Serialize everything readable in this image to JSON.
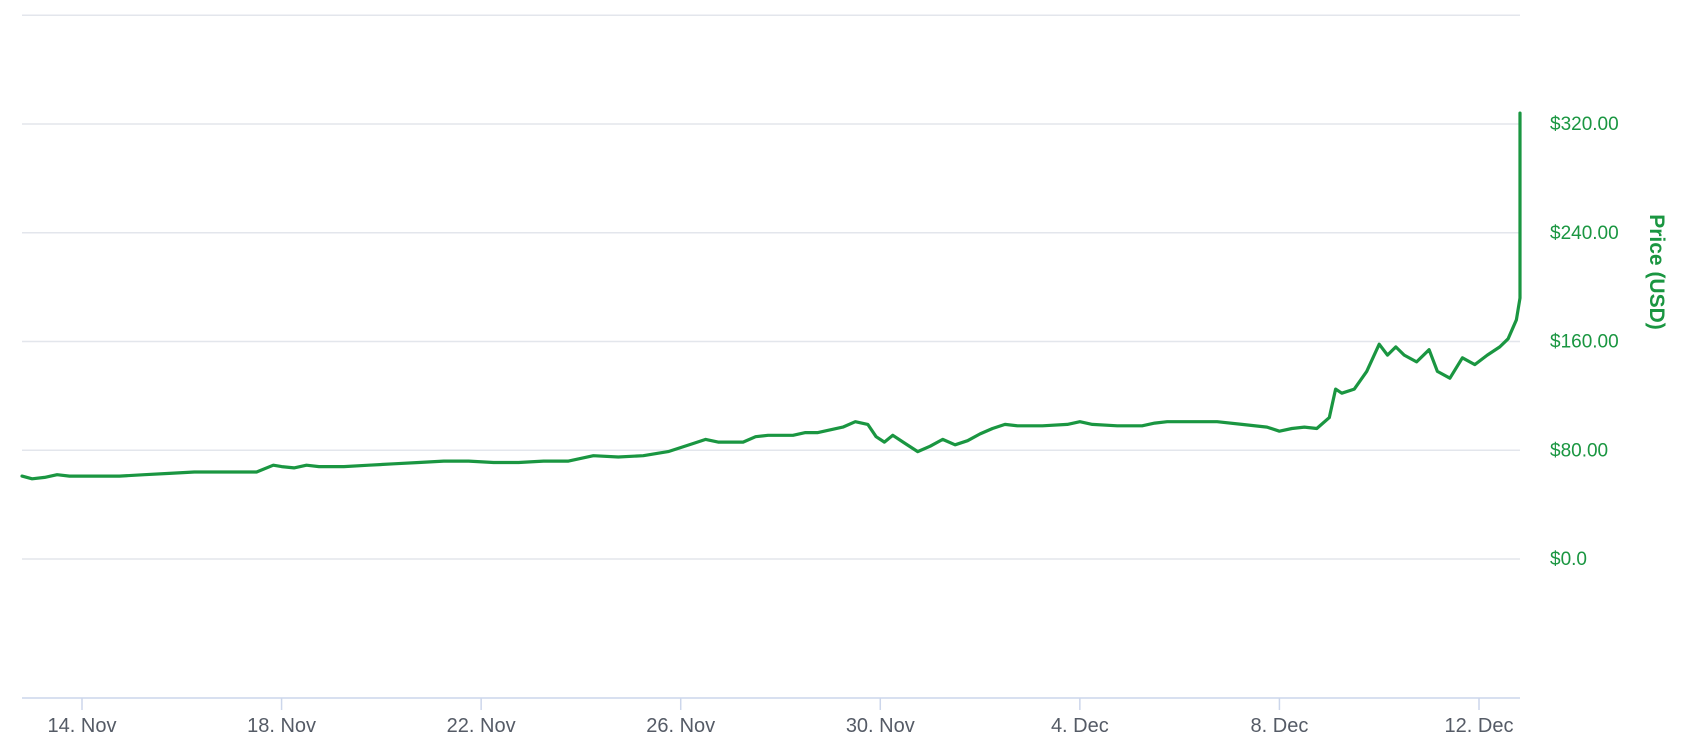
{
  "colors": {
    "series": "#1a9641",
    "axis_text": "#1a9641",
    "x_text": "#555b66",
    "grid": "#e3e6ec"
  },
  "chart_data": {
    "type": "line",
    "title": "",
    "xlabel": "",
    "ylabel": "Price (USD)",
    "grid": true,
    "legend": "none",
    "xlim": [
      "2017-11-13",
      "2017-12-13"
    ],
    "ylim": [
      -120,
      400
    ],
    "x_ticks": [
      "14. Nov",
      "18. Nov",
      "22. Nov",
      "26. Nov",
      "30. Nov",
      "4. Dec",
      "8. Dec",
      "12. Dec"
    ],
    "y_ticks": [
      "$0.0",
      "$80.00",
      "$160.00",
      "$240.00",
      "$320.00"
    ],
    "y_tick_values": [
      0,
      80,
      160,
      240,
      320
    ],
    "series": [
      {
        "values": [
          [
            "2017-11-12 19:00",
            61
          ],
          [
            "2017-11-13 00:00",
            59
          ],
          [
            "2017-11-13 06:00",
            60
          ],
          [
            "2017-11-13 12:00",
            62
          ],
          [
            "2017-11-13 18:00",
            61
          ],
          [
            "2017-11-14 06:00",
            61
          ],
          [
            "2017-11-14 18:00",
            61
          ],
          [
            "2017-11-15 06:00",
            62
          ],
          [
            "2017-11-15 18:00",
            63
          ],
          [
            "2017-11-16 06:00",
            64
          ],
          [
            "2017-11-16 18:00",
            64
          ],
          [
            "2017-11-17 06:00",
            64
          ],
          [
            "2017-11-17 12:00",
            64
          ],
          [
            "2017-11-17 20:00",
            69
          ],
          [
            "2017-11-18 00:00",
            68
          ],
          [
            "2017-11-18 06:00",
            67
          ],
          [
            "2017-11-18 12:00",
            69
          ],
          [
            "2017-11-18 18:00",
            68
          ],
          [
            "2017-11-19 06:00",
            68
          ],
          [
            "2017-11-19 18:00",
            69
          ],
          [
            "2017-11-20 06:00",
            70
          ],
          [
            "2017-11-20 18:00",
            71
          ],
          [
            "2017-11-21 06:00",
            72
          ],
          [
            "2017-11-21 18:00",
            72
          ],
          [
            "2017-11-22 06:00",
            71
          ],
          [
            "2017-11-22 18:00",
            71
          ],
          [
            "2017-11-23 06:00",
            72
          ],
          [
            "2017-11-23 18:00",
            72
          ],
          [
            "2017-11-24 06:00",
            76
          ],
          [
            "2017-11-24 18:00",
            75
          ],
          [
            "2017-11-25 06:00",
            76
          ],
          [
            "2017-11-25 18:00",
            79
          ],
          [
            "2017-11-26 06:00",
            85
          ],
          [
            "2017-11-26 12:00",
            88
          ],
          [
            "2017-11-26 18:00",
            86
          ],
          [
            "2017-11-27 06:00",
            86
          ],
          [
            "2017-11-27 12:00",
            90
          ],
          [
            "2017-11-27 18:00",
            91
          ],
          [
            "2017-11-28 06:00",
            91
          ],
          [
            "2017-11-28 12:00",
            93
          ],
          [
            "2017-11-28 18:00",
            93
          ],
          [
            "2017-11-29 06:00",
            97
          ],
          [
            "2017-11-29 12:00",
            101
          ],
          [
            "2017-11-29 18:00",
            99
          ],
          [
            "2017-11-29 22:00",
            90
          ],
          [
            "2017-11-30 02:00",
            86
          ],
          [
            "2017-11-30 06:00",
            91
          ],
          [
            "2017-11-30 12:00",
            85
          ],
          [
            "2017-11-30 18:00",
            79
          ],
          [
            "2017-12-01 00:00",
            83
          ],
          [
            "2017-12-01 06:00",
            88
          ],
          [
            "2017-12-01 12:00",
            84
          ],
          [
            "2017-12-01 18:00",
            87
          ],
          [
            "2017-12-02 00:00",
            92
          ],
          [
            "2017-12-02 06:00",
            96
          ],
          [
            "2017-12-02 12:00",
            99
          ],
          [
            "2017-12-02 18:00",
            98
          ],
          [
            "2017-12-03 06:00",
            98
          ],
          [
            "2017-12-03 18:00",
            99
          ],
          [
            "2017-12-04 00:00",
            101
          ],
          [
            "2017-12-04 06:00",
            99
          ],
          [
            "2017-12-04 18:00",
            98
          ],
          [
            "2017-12-05 06:00",
            98
          ],
          [
            "2017-12-05 12:00",
            100
          ],
          [
            "2017-12-05 18:00",
            101
          ],
          [
            "2017-12-06 06:00",
            101
          ],
          [
            "2017-12-06 18:00",
            101
          ],
          [
            "2017-12-07 06:00",
            99
          ],
          [
            "2017-12-07 18:00",
            97
          ],
          [
            "2017-12-08 00:00",
            94
          ],
          [
            "2017-12-08 06:00",
            96
          ],
          [
            "2017-12-08 12:00",
            97
          ],
          [
            "2017-12-08 18:00",
            96
          ],
          [
            "2017-12-09 00:00",
            104
          ],
          [
            "2017-12-09 03:00",
            125
          ],
          [
            "2017-12-09 06:00",
            122
          ],
          [
            "2017-12-09 12:00",
            125
          ],
          [
            "2017-12-09 18:00",
            138
          ],
          [
            "2017-12-10 00:00",
            158
          ],
          [
            "2017-12-10 04:00",
            150
          ],
          [
            "2017-12-10 08:00",
            156
          ],
          [
            "2017-12-10 12:00",
            150
          ],
          [
            "2017-12-10 18:00",
            145
          ],
          [
            "2017-12-11 00:00",
            154
          ],
          [
            "2017-12-11 04:00",
            138
          ],
          [
            "2017-12-11 10:00",
            133
          ],
          [
            "2017-12-11 16:00",
            148
          ],
          [
            "2017-12-11 22:00",
            143
          ],
          [
            "2017-12-12 04:00",
            150
          ],
          [
            "2017-12-12 10:00",
            156
          ],
          [
            "2017-12-12 14:00",
            162
          ],
          [
            "2017-12-12 18:00",
            176
          ],
          [
            "2017-12-12 22:00",
            192
          ],
          [
            "2017-12-13 02:00",
            212
          ],
          [
            "2017-12-13 05:00",
            240
          ],
          [
            "2017-12-13 08:00",
            236
          ],
          [
            "2017-12-13 11:00",
            244
          ],
          [
            "2017-12-13 14:00",
            275
          ],
          [
            "2017-12-13 16:00",
            300
          ],
          [
            "2017-12-13 18:00",
            328
          ],
          [
            "2017-12-13 20:00",
            326
          ],
          [
            "2017-12-13 22:00",
            318
          ],
          [
            "2017-12-14 00:00",
            324
          ]
        ]
      }
    ]
  }
}
